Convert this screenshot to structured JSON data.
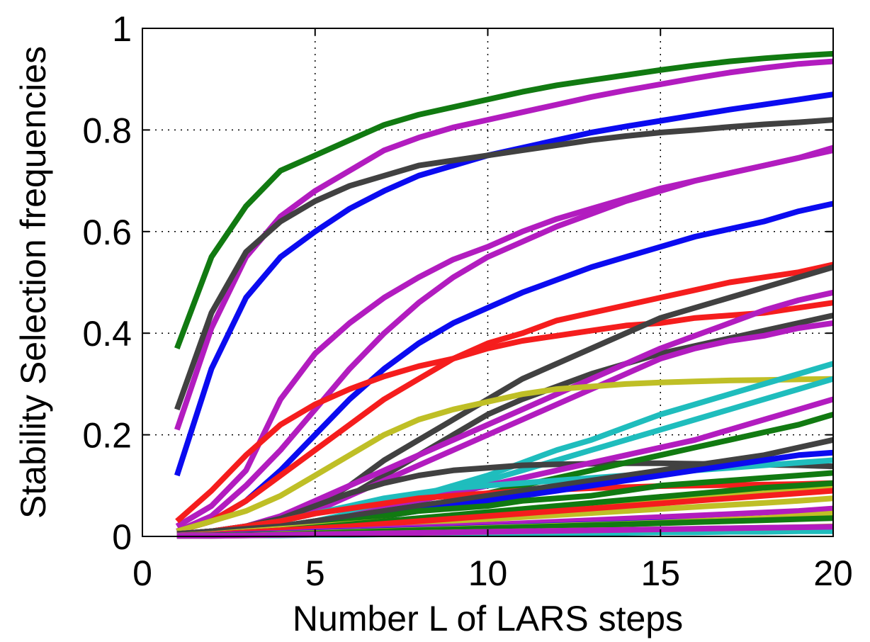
{
  "chart_data": {
    "type": "line",
    "title": "",
    "xlabel": "Number L of LARS steps",
    "ylabel": "Stability Selection frequencies",
    "xlim": [
      0,
      20
    ],
    "ylim": [
      0,
      1
    ],
    "x_ticks": [
      "0",
      "5",
      "10",
      "15",
      "20"
    ],
    "y_ticks": [
      "0",
      "0.2",
      "0.4",
      "0.6",
      "0.8",
      "1"
    ],
    "grid": true,
    "legend": "none",
    "x": [
      1,
      2,
      3,
      4,
      5,
      6,
      7,
      8,
      9,
      10,
      11,
      12,
      13,
      14,
      15,
      16,
      17,
      18,
      19,
      20
    ],
    "colors": {
      "green": "#117a11",
      "magenta": "#b21cbf",
      "blue": "#0b0bf0",
      "dark": "#414141",
      "red": "#f51d1d",
      "olive": "#bfbf26",
      "cyan": "#1fbdbd"
    },
    "series": [
      {
        "color": "green",
        "values": [
          0.37,
          0.55,
          0.65,
          0.72,
          0.75,
          0.78,
          0.81,
          0.83,
          0.845,
          0.86,
          0.875,
          0.888,
          0.898,
          0.908,
          0.918,
          0.927,
          0.935,
          0.941,
          0.946,
          0.95
        ]
      },
      {
        "color": "magenta",
        "values": [
          0.21,
          0.41,
          0.55,
          0.63,
          0.68,
          0.72,
          0.76,
          0.785,
          0.805,
          0.82,
          0.835,
          0.85,
          0.865,
          0.878,
          0.89,
          0.902,
          0.913,
          0.922,
          0.93,
          0.935
        ]
      },
      {
        "color": "blue",
        "values": [
          0.12,
          0.33,
          0.47,
          0.55,
          0.6,
          0.645,
          0.68,
          0.71,
          0.73,
          0.75,
          0.765,
          0.78,
          0.795,
          0.807,
          0.818,
          0.829,
          0.84,
          0.85,
          0.86,
          0.87
        ]
      },
      {
        "color": "dark",
        "values": [
          0.25,
          0.44,
          0.56,
          0.62,
          0.66,
          0.69,
          0.71,
          0.73,
          0.74,
          0.75,
          0.76,
          0.77,
          0.78,
          0.788,
          0.795,
          0.8,
          0.806,
          0.811,
          0.815,
          0.82
        ]
      },
      {
        "color": "magenta",
        "values": [
          0.02,
          0.06,
          0.13,
          0.27,
          0.36,
          0.42,
          0.47,
          0.51,
          0.545,
          0.57,
          0.6,
          0.625,
          0.645,
          0.665,
          0.685,
          0.7,
          0.715,
          0.73,
          0.745,
          0.765
        ]
      },
      {
        "color": "magenta",
        "values": [
          0.01,
          0.04,
          0.1,
          0.17,
          0.25,
          0.33,
          0.4,
          0.46,
          0.51,
          0.55,
          0.58,
          0.61,
          0.635,
          0.66,
          0.68,
          0.7,
          0.715,
          0.73,
          0.745,
          0.76
        ]
      },
      {
        "color": "blue",
        "values": [
          0.01,
          0.03,
          0.07,
          0.13,
          0.2,
          0.27,
          0.33,
          0.38,
          0.42,
          0.45,
          0.48,
          0.505,
          0.53,
          0.55,
          0.57,
          0.59,
          0.605,
          0.62,
          0.64,
          0.655
        ]
      },
      {
        "color": "red",
        "values": [
          0.03,
          0.09,
          0.16,
          0.22,
          0.26,
          0.29,
          0.315,
          0.335,
          0.35,
          0.37,
          0.385,
          0.395,
          0.405,
          0.415,
          0.42,
          0.43,
          0.435,
          0.44,
          0.45,
          0.46
        ]
      },
      {
        "color": "red",
        "values": [
          0.01,
          0.03,
          0.07,
          0.12,
          0.17,
          0.22,
          0.27,
          0.31,
          0.35,
          0.38,
          0.4,
          0.425,
          0.44,
          0.455,
          0.47,
          0.485,
          0.5,
          0.51,
          0.52,
          0.535
        ]
      },
      {
        "color": "dark",
        "values": [
          0.005,
          0.01,
          0.02,
          0.035,
          0.06,
          0.1,
          0.15,
          0.19,
          0.23,
          0.27,
          0.31,
          0.34,
          0.37,
          0.4,
          0.43,
          0.45,
          0.47,
          0.49,
          0.51,
          0.53
        ]
      },
      {
        "color": "dark",
        "values": [
          0.005,
          0.01,
          0.02,
          0.03,
          0.05,
          0.08,
          0.12,
          0.16,
          0.2,
          0.24,
          0.27,
          0.295,
          0.32,
          0.34,
          0.36,
          0.375,
          0.39,
          0.405,
          0.42,
          0.435
        ]
      },
      {
        "color": "magenta",
        "values": [
          0.005,
          0.01,
          0.02,
          0.04,
          0.07,
          0.1,
          0.13,
          0.16,
          0.19,
          0.22,
          0.25,
          0.28,
          0.31,
          0.34,
          0.37,
          0.395,
          0.42,
          0.445,
          0.465,
          0.48
        ]
      },
      {
        "color": "magenta",
        "values": [
          0.005,
          0.01,
          0.02,
          0.03,
          0.05,
          0.08,
          0.11,
          0.14,
          0.17,
          0.2,
          0.23,
          0.26,
          0.29,
          0.32,
          0.35,
          0.37,
          0.385,
          0.395,
          0.41,
          0.42
        ]
      },
      {
        "color": "olive",
        "values": [
          0.01,
          0.03,
          0.05,
          0.08,
          0.12,
          0.16,
          0.2,
          0.23,
          0.25,
          0.265,
          0.28,
          0.29,
          0.295,
          0.3,
          0.303,
          0.305,
          0.307,
          0.308,
          0.309,
          0.31
        ]
      },
      {
        "color": "cyan",
        "values": [
          0.005,
          0.01,
          0.015,
          0.02,
          0.03,
          0.045,
          0.06,
          0.08,
          0.1,
          0.12,
          0.145,
          0.17,
          0.19,
          0.215,
          0.24,
          0.26,
          0.28,
          0.3,
          0.32,
          0.34
        ]
      },
      {
        "color": "cyan",
        "values": [
          0.005,
          0.01,
          0.015,
          0.02,
          0.03,
          0.04,
          0.055,
          0.07,
          0.09,
          0.11,
          0.13,
          0.15,
          0.17,
          0.19,
          0.21,
          0.23,
          0.25,
          0.27,
          0.29,
          0.31
        ]
      },
      {
        "color": "dark",
        "values": [
          0.005,
          0.01,
          0.02,
          0.035,
          0.06,
          0.085,
          0.105,
          0.12,
          0.13,
          0.135,
          0.14,
          0.142,
          0.143,
          0.144,
          0.144,
          0.143,
          0.142,
          0.141,
          0.14,
          0.138
        ]
      },
      {
        "color": "magenta",
        "values": [
          0.005,
          0.01,
          0.015,
          0.02,
          0.03,
          0.04,
          0.055,
          0.07,
          0.085,
          0.1,
          0.115,
          0.13,
          0.145,
          0.16,
          0.175,
          0.19,
          0.21,
          0.23,
          0.25,
          0.27
        ]
      },
      {
        "color": "green",
        "values": [
          0.005,
          0.01,
          0.015,
          0.02,
          0.03,
          0.04,
          0.05,
          0.06,
          0.07,
          0.085,
          0.1,
          0.115,
          0.13,
          0.145,
          0.16,
          0.175,
          0.19,
          0.205,
          0.22,
          0.24
        ]
      },
      {
        "color": "cyan",
        "values": [
          0.005,
          0.01,
          0.02,
          0.03,
          0.045,
          0.06,
          0.075,
          0.085,
          0.095,
          0.1,
          0.105,
          0.11,
          0.115,
          0.12,
          0.125,
          0.13,
          0.135,
          0.14,
          0.145,
          0.15
        ]
      },
      {
        "color": "red",
        "values": [
          0.005,
          0.01,
          0.02,
          0.03,
          0.045,
          0.055,
          0.065,
          0.075,
          0.08,
          0.085,
          0.09,
          0.092,
          0.095,
          0.097,
          0.099,
          0.1,
          0.101,
          0.102,
          0.103,
          0.105
        ]
      },
      {
        "color": "dark",
        "values": [
          0.005,
          0.01,
          0.015,
          0.02,
          0.03,
          0.04,
          0.05,
          0.06,
          0.07,
          0.08,
          0.09,
          0.1,
          0.11,
          0.12,
          0.13,
          0.14,
          0.15,
          0.16,
          0.175,
          0.19
        ]
      },
      {
        "color": "blue",
        "values": [
          0.002,
          0.005,
          0.01,
          0.015,
          0.02,
          0.03,
          0.04,
          0.05,
          0.06,
          0.07,
          0.08,
          0.09,
          0.1,
          0.11,
          0.12,
          0.13,
          0.14,
          0.15,
          0.16,
          0.165
        ]
      },
      {
        "color": "green",
        "values": [
          0.002,
          0.005,
          0.01,
          0.015,
          0.02,
          0.03,
          0.04,
          0.05,
          0.055,
          0.06,
          0.07,
          0.075,
          0.08,
          0.09,
          0.1,
          0.105,
          0.11,
          0.115,
          0.12,
          0.125
        ]
      },
      {
        "color": "olive",
        "values": [
          0.002,
          0.005,
          0.01,
          0.015,
          0.02,
          0.025,
          0.03,
          0.035,
          0.04,
          0.045,
          0.05,
          0.055,
          0.06,
          0.065,
          0.07,
          0.075,
          0.08,
          0.085,
          0.09,
          0.095
        ]
      },
      {
        "color": "green",
        "values": [
          0.002,
          0.004,
          0.008,
          0.012,
          0.018,
          0.024,
          0.03,
          0.036,
          0.042,
          0.048,
          0.054,
          0.06,
          0.066,
          0.072,
          0.078,
          0.084,
          0.09,
          0.096,
          0.1,
          0.105
        ]
      },
      {
        "color": "olive",
        "values": [
          0.002,
          0.004,
          0.007,
          0.01,
          0.014,
          0.018,
          0.022,
          0.026,
          0.03,
          0.034,
          0.038,
          0.042,
          0.046,
          0.05,
          0.054,
          0.058,
          0.062,
          0.066,
          0.07,
          0.075
        ]
      },
      {
        "color": "red",
        "values": [
          0.002,
          0.004,
          0.008,
          0.012,
          0.016,
          0.02,
          0.025,
          0.03,
          0.035,
          0.04,
          0.045,
          0.05,
          0.055,
          0.06,
          0.065,
          0.07,
          0.075,
          0.08,
          0.085,
          0.09
        ]
      },
      {
        "color": "magenta",
        "values": [
          0.002,
          0.003,
          0.005,
          0.007,
          0.01,
          0.012,
          0.015,
          0.018,
          0.02,
          0.023,
          0.026,
          0.029,
          0.032,
          0.035,
          0.038,
          0.041,
          0.044,
          0.047,
          0.05,
          0.055
        ]
      },
      {
        "color": "blue",
        "values": [
          0.001,
          0.002,
          0.004,
          0.006,
          0.008,
          0.01,
          0.012,
          0.014,
          0.016,
          0.018,
          0.02,
          0.022,
          0.024,
          0.026,
          0.028,
          0.03,
          0.032,
          0.034,
          0.036,
          0.04
        ]
      },
      {
        "color": "olive",
        "values": [
          0.001,
          0.002,
          0.003,
          0.005,
          0.007,
          0.009,
          0.011,
          0.013,
          0.015,
          0.017,
          0.019,
          0.021,
          0.023,
          0.025,
          0.027,
          0.03,
          0.033,
          0.036,
          0.04,
          0.045
        ]
      },
      {
        "color": "green",
        "values": [
          0.001,
          0.002,
          0.003,
          0.004,
          0.006,
          0.008,
          0.01,
          0.012,
          0.014,
          0.016,
          0.018,
          0.02,
          0.022,
          0.024,
          0.026,
          0.028,
          0.03,
          0.032,
          0.034,
          0.036
        ]
      },
      {
        "color": "cyan",
        "values": [
          0.001,
          0.001,
          0.002,
          0.002,
          0.003,
          0.003,
          0.004,
          0.004,
          0.005,
          0.005,
          0.006,
          0.006,
          0.007,
          0.007,
          0.008,
          0.008,
          0.009,
          0.009,
          0.01,
          0.01
        ]
      },
      {
        "color": "olive",
        "values": [
          0.001,
          0.001,
          0.002,
          0.003,
          0.004,
          0.005,
          0.006,
          0.007,
          0.008,
          0.009,
          0.01,
          0.011,
          0.012,
          0.013,
          0.014,
          0.015,
          0.016,
          0.017,
          0.018,
          0.02
        ]
      },
      {
        "color": "magenta",
        "values": [
          0.001,
          0.001,
          0.002,
          0.003,
          0.004,
          0.005,
          0.006,
          0.007,
          0.008,
          0.009,
          0.01,
          0.011,
          0.012,
          0.013,
          0.014,
          0.015,
          0.016,
          0.017,
          0.018,
          0.019
        ]
      }
    ]
  }
}
